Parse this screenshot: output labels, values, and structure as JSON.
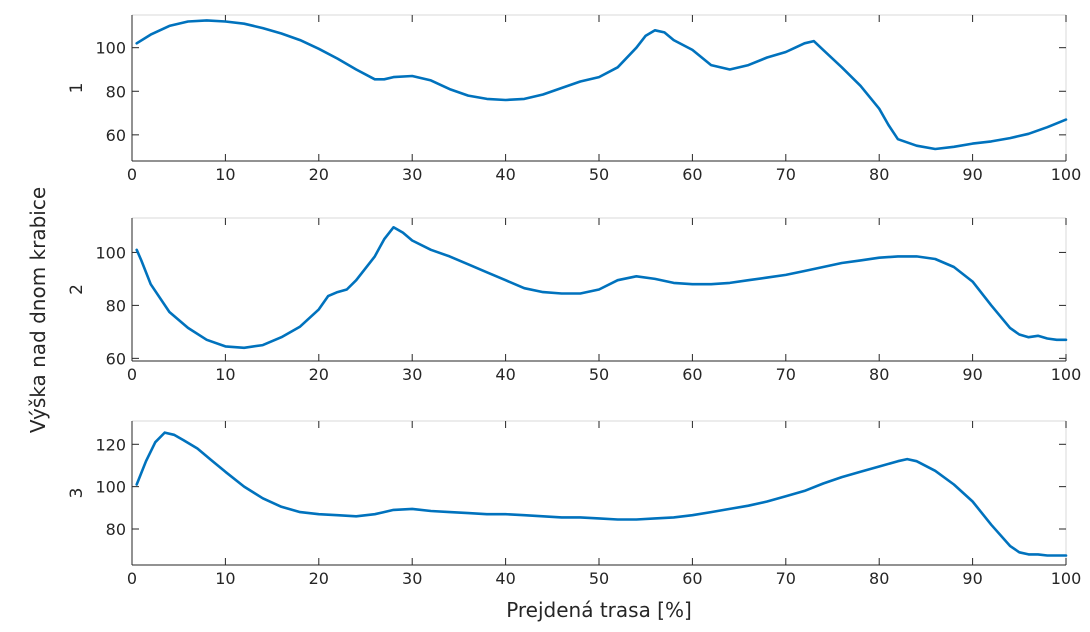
{
  "ylabel": "Výška nad dnom krabice",
  "xlabel": "Prejdená trasa [%]",
  "line_color": "#0072bd",
  "chart_data": [
    {
      "type": "line",
      "panel_label": "1",
      "xlim": [
        0,
        100
      ],
      "ylim": [
        48,
        115
      ],
      "xticks": [
        0,
        10,
        20,
        30,
        40,
        50,
        60,
        70,
        80,
        90,
        100
      ],
      "yticks": [
        60,
        80,
        100
      ],
      "x": [
        0.5,
        2,
        4,
        6,
        8,
        10,
        12,
        14,
        16,
        18,
        20,
        22,
        24,
        26,
        27,
        28,
        30,
        32,
        34,
        36,
        38,
        40,
        42,
        44,
        46,
        48,
        50,
        52,
        54,
        55,
        56,
        57,
        58,
        60,
        62,
        64,
        66,
        68,
        70,
        71,
        72,
        73,
        74,
        76,
        78,
        80,
        81,
        82,
        84,
        86,
        88,
        90,
        92,
        94,
        96,
        98,
        100
      ],
      "y": [
        102,
        106,
        110,
        112,
        112.5,
        112,
        111,
        109,
        106.5,
        103.5,
        99.5,
        95,
        90,
        85.5,
        85.5,
        86.5,
        87,
        85,
        81,
        78,
        76.5,
        76,
        76.5,
        78.5,
        81.5,
        84.5,
        86.5,
        91,
        100,
        105.5,
        108,
        107,
        103.5,
        99,
        92,
        90,
        92,
        95.5,
        98,
        100,
        102,
        103,
        99,
        91,
        82.5,
        72,
        64.5,
        58,
        55,
        53.5,
        54.5,
        56,
        57,
        58.5,
        60.5,
        63.5,
        67
      ]
    },
    {
      "type": "line",
      "panel_label": "2",
      "xlim": [
        0,
        100
      ],
      "ylim": [
        59,
        113
      ],
      "xticks": [
        0,
        10,
        20,
        30,
        40,
        50,
        60,
        70,
        80,
        90,
        100
      ],
      "yticks": [
        60,
        80,
        100
      ],
      "x": [
        0.5,
        1,
        2,
        4,
        6,
        8,
        10,
        12,
        14,
        16,
        18,
        20,
        21,
        22,
        23,
        24,
        26,
        27,
        28,
        29,
        30,
        32,
        34,
        36,
        38,
        40,
        42,
        44,
        46,
        48,
        50,
        52,
        54,
        56,
        58,
        60,
        62,
        64,
        66,
        68,
        70,
        72,
        74,
        76,
        78,
        80,
        82,
        84,
        86,
        88,
        90,
        92,
        94,
        95,
        96,
        97,
        98,
        99,
        100
      ],
      "y": [
        101,
        97,
        88,
        77.5,
        71.5,
        67,
        64.5,
        64,
        65,
        68,
        72,
        78.5,
        83.5,
        85,
        86,
        89.5,
        98.5,
        105,
        109.5,
        107.5,
        104.5,
        101,
        98.5,
        95.5,
        92.5,
        89.5,
        86.5,
        85,
        84.5,
        84.5,
        86,
        89.5,
        91,
        90,
        88.5,
        88,
        88,
        88.5,
        89.5,
        90.5,
        91.5,
        93,
        94.5,
        96,
        97,
        98,
        98.5,
        98.5,
        97.5,
        94.5,
        89,
        80,
        71.5,
        69,
        68,
        68.5,
        67.5,
        67,
        67
      ]
    },
    {
      "type": "line",
      "panel_label": "3",
      "xlim": [
        0,
        100
      ],
      "ylim": [
        63,
        131
      ],
      "xticks": [
        0,
        10,
        20,
        30,
        40,
        50,
        60,
        70,
        80,
        90,
        100
      ],
      "yticks": [
        80,
        100,
        120
      ],
      "x": [
        0.5,
        1.5,
        2.5,
        3.5,
        4.5,
        5.5,
        7,
        8.5,
        10,
        12,
        14,
        16,
        18,
        20,
        22,
        24,
        26,
        28,
        30,
        32,
        34,
        36,
        38,
        40,
        42,
        44,
        46,
        48,
        50,
        52,
        54,
        56,
        58,
        60,
        62,
        64,
        66,
        68,
        70,
        72,
        74,
        76,
        78,
        80,
        82,
        83,
        84,
        86,
        88,
        90,
        92,
        94,
        95,
        96,
        97,
        98,
        100
      ],
      "y": [
        101,
        112,
        121,
        125.5,
        124.5,
        122,
        118,
        112.5,
        107,
        100,
        94.5,
        90.5,
        88,
        87,
        86.5,
        86,
        87,
        89,
        89.5,
        88.5,
        88,
        87.5,
        87,
        87,
        86.5,
        86,
        85.5,
        85.5,
        85,
        84.5,
        84.5,
        85,
        85.5,
        86.5,
        88,
        89.5,
        91,
        93,
        95.5,
        98,
        101.5,
        104.5,
        107,
        109.5,
        112,
        113,
        112,
        107.5,
        101,
        93,
        82,
        72,
        69,
        68,
        68,
        67.5,
        67.5
      ]
    }
  ]
}
